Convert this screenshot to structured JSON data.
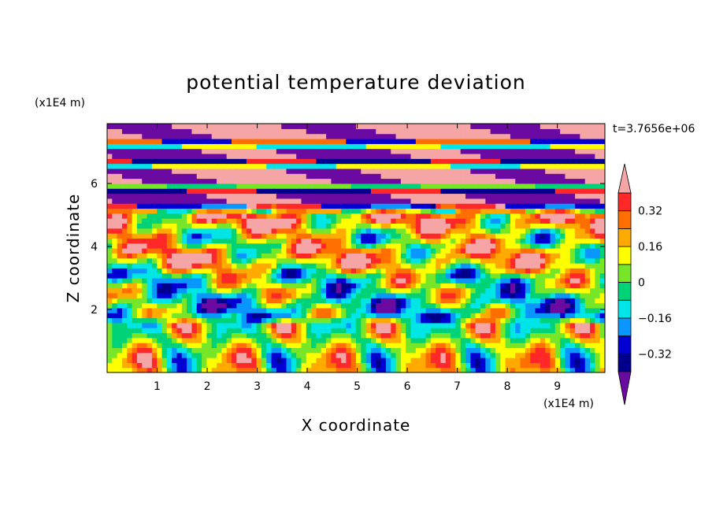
{
  "chart_data": {
    "type": "heatmap",
    "title": "potential temperature deviation",
    "xlabel": "X coordinate",
    "ylabel": "Z coordinate",
    "x_unit": "(x1E4 m)",
    "y_unit": "(x1E4 m)",
    "time_label": "t=3.7656e+06",
    "xlim": [
      0,
      9.95
    ],
    "ylim": [
      0,
      7.9
    ],
    "x_ticks": [
      "1",
      "2",
      "3",
      "4",
      "5",
      "6",
      "7",
      "8",
      "9"
    ],
    "y_ticks": [
      "2",
      "4",
      "6"
    ],
    "colorbar": {
      "levels": [
        -0.4,
        -0.32,
        -0.24,
        -0.16,
        -0.08,
        0,
        0.08,
        0.16,
        0.24,
        0.32,
        0.4
      ],
      "tick_labels": [
        "0.32",
        "0.16",
        "0",
        "−0.16",
        "−0.32"
      ],
      "tick_values": [
        0.32,
        0.16,
        0,
        -0.16,
        -0.32
      ],
      "colors": [
        "#6a0aa0",
        "#00008c",
        "#0000d2",
        "#0a96ff",
        "#00e6e6",
        "#00d278",
        "#78e628",
        "#ffff00",
        "#ffaa00",
        "#ff6e00",
        "#ff2828",
        "#f5a5a5"
      ],
      "extend": "both"
    },
    "bands": [
      {
        "zmin": 7.25,
        "zmax": 7.9,
        "pattern": "pink-purple",
        "value": 0.45
      },
      {
        "zmin": 6.6,
        "zmax": 7.25,
        "pattern": "pink-purple",
        "value": -0.45
      },
      {
        "zmin": 5.9,
        "zmax": 6.6,
        "pattern": "pink-purple",
        "value": 0.45
      },
      {
        "zmin": 5.2,
        "zmax": 5.9,
        "pattern": "pink-purple",
        "value": -0.45
      },
      {
        "zmin": 4.6,
        "zmax": 5.2,
        "pattern": "mixed",
        "value": 0.25
      },
      {
        "zmin": 4.0,
        "zmax": 4.6,
        "pattern": "mixed",
        "value": 0.1
      },
      {
        "zmin": 3.3,
        "zmax": 4.0,
        "pattern": "mixed",
        "value": 0.2
      },
      {
        "zmin": 2.4,
        "zmax": 3.3,
        "pattern": "mixed",
        "value": 0.0
      },
      {
        "zmin": 1.7,
        "zmax": 2.4,
        "pattern": "mixed",
        "value": -0.1
      },
      {
        "zmin": 0.0,
        "zmax": 1.7,
        "pattern": "eddies",
        "value": 0.05
      }
    ]
  }
}
